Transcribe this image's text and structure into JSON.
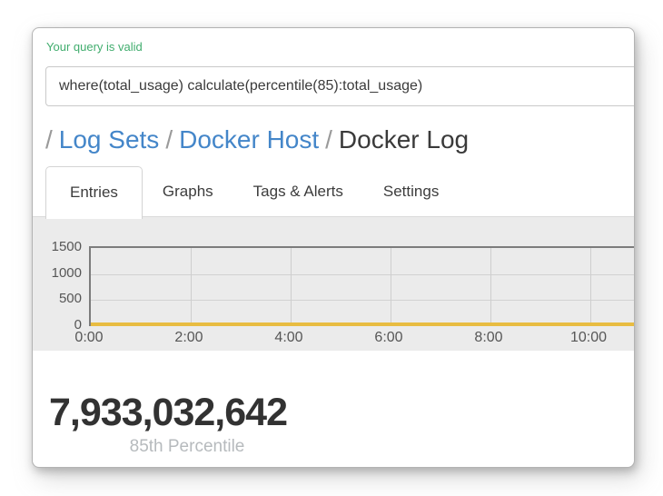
{
  "status": {
    "message": "Your query is valid",
    "color": "#41ad6e"
  },
  "query": {
    "value": "where(total_usage) calculate(percentile(85):total_usage)"
  },
  "breadcrumb": {
    "separator": "/",
    "items": [
      {
        "label": "Log Sets",
        "type": "link"
      },
      {
        "label": "Docker Host",
        "type": "link"
      },
      {
        "label": "Docker Log",
        "type": "current"
      }
    ]
  },
  "tabs": [
    {
      "label": "Entries",
      "active": true
    },
    {
      "label": "Graphs",
      "active": false
    },
    {
      "label": "Tags & Alerts",
      "active": false
    },
    {
      "label": "Settings",
      "active": false
    }
  ],
  "chart_data": {
    "type": "line",
    "title": "",
    "xlabel": "",
    "ylabel": "",
    "x_ticks": [
      "0:00",
      "2:00",
      "4:00",
      "6:00",
      "8:00",
      "10:00"
    ],
    "y_ticks": [
      0,
      500,
      1000,
      1500
    ],
    "ylim": [
      0,
      1500
    ],
    "grid": true,
    "series": [
      {
        "name": "percentile(85):total_usage",
        "color": "#e8bc41",
        "x": [
          "0:00",
          "2:00",
          "4:00",
          "6:00",
          "8:00",
          "10:00"
        ],
        "values": [
          0,
          0,
          0,
          0,
          0,
          0
        ]
      }
    ],
    "plot_background": "#ebebeb"
  },
  "summary": {
    "value": "7,933,032,642",
    "label": "85th Percentile"
  },
  "colors": {
    "status_green": "#41ad6e",
    "link_blue": "#4486c9",
    "series_yellow": "#e8bc41",
    "band_gray": "#ebebeb",
    "text_dark": "#3c3c3c"
  }
}
